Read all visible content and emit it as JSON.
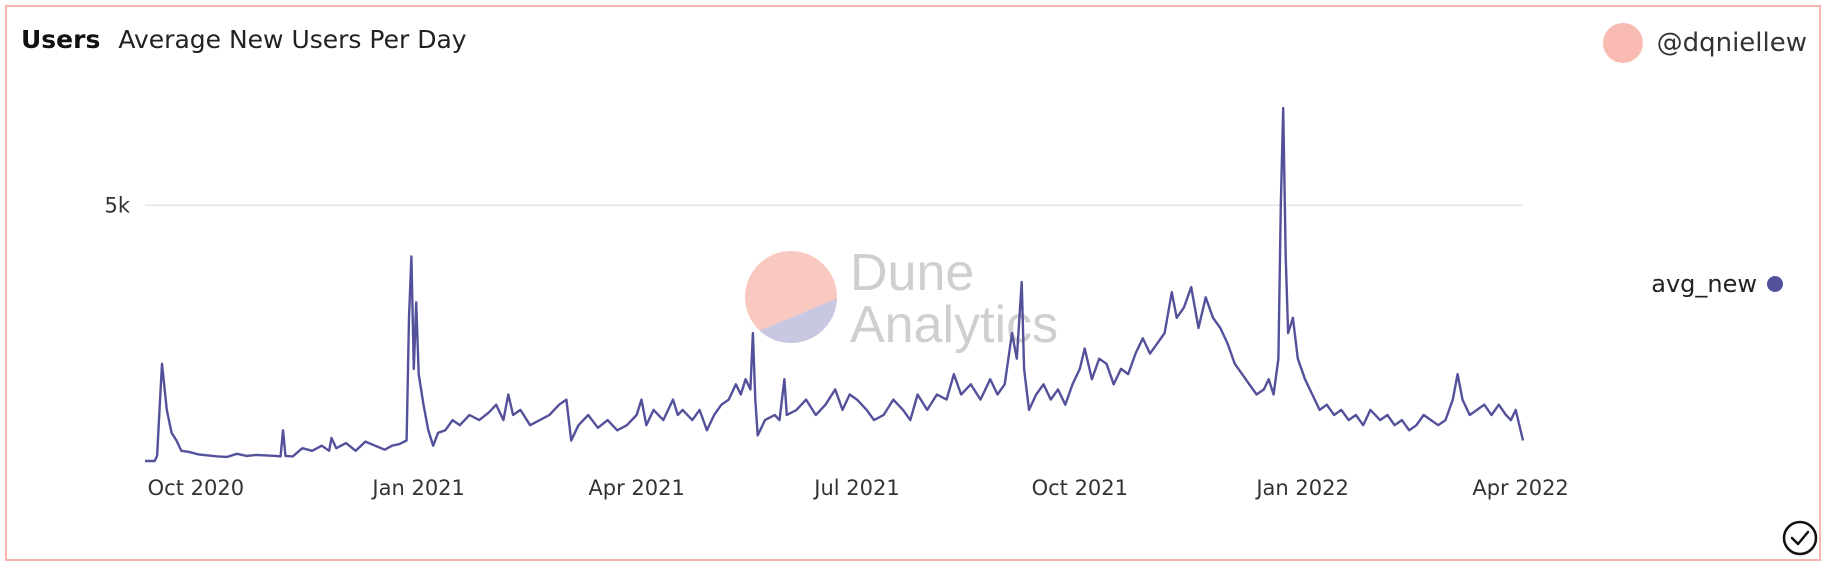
{
  "header": {
    "query_name": "Users",
    "viz_title": "Average New Users Per Day"
  },
  "author": {
    "username": "@dqniellew",
    "avatar_color": "#f9bab2"
  },
  "watermark": {
    "line1": "Dune",
    "line2": "Analytics",
    "color_top": "#f9c8c0",
    "color_bottom": "#c9c8e2",
    "text_color": "#cfcfcf"
  },
  "colors": {
    "series": "#54519b",
    "grid": "#e6e6e6",
    "border": "#f7b6ad"
  },
  "chart_data": {
    "type": "line",
    "title": "Average New Users Per Day",
    "xlabel": "",
    "ylabel": "",
    "x_range": [
      "2020-09-10",
      "2022-04-02"
    ],
    "ylim": [
      0,
      7000
    ],
    "y_ticks": [
      {
        "value": 5000,
        "label": "5k"
      }
    ],
    "x_ticks": [
      {
        "date": "2020-10-01",
        "label": "Oct 2020"
      },
      {
        "date": "2021-01-01",
        "label": "Jan 2021"
      },
      {
        "date": "2021-04-01",
        "label": "Apr 2021"
      },
      {
        "date": "2021-07-01",
        "label": "Jul 2021"
      },
      {
        "date": "2021-10-01",
        "label": "Oct 2021"
      },
      {
        "date": "2022-01-01",
        "label": "Jan 2022"
      },
      {
        "date": "2022-04-01",
        "label": "Apr 2022"
      }
    ],
    "grid": true,
    "legend_position": "right",
    "series": [
      {
        "name": "avg_new",
        "points": [
          [
            "2020-09-10",
            0
          ],
          [
            "2020-09-14",
            0
          ],
          [
            "2020-09-15",
            100
          ],
          [
            "2020-09-16",
            1000
          ],
          [
            "2020-09-17",
            1900
          ],
          [
            "2020-09-19",
            1000
          ],
          [
            "2020-09-21",
            550
          ],
          [
            "2020-09-23",
            400
          ],
          [
            "2020-09-25",
            200
          ],
          [
            "2020-09-28",
            180
          ],
          [
            "2020-10-02",
            130
          ],
          [
            "2020-10-06",
            110
          ],
          [
            "2020-10-10",
            90
          ],
          [
            "2020-10-14",
            80
          ],
          [
            "2020-10-18",
            140
          ],
          [
            "2020-10-22",
            100
          ],
          [
            "2020-10-26",
            120
          ],
          [
            "2020-10-30",
            110
          ],
          [
            "2020-11-03",
            100
          ],
          [
            "2020-11-05",
            90
          ],
          [
            "2020-11-06",
            600
          ],
          [
            "2020-11-07",
            100
          ],
          [
            "2020-11-10",
            90
          ],
          [
            "2020-11-14",
            250
          ],
          [
            "2020-11-18",
            200
          ],
          [
            "2020-11-22",
            300
          ],
          [
            "2020-11-25",
            200
          ],
          [
            "2020-11-26",
            450
          ],
          [
            "2020-11-28",
            250
          ],
          [
            "2020-12-02",
            350
          ],
          [
            "2020-12-06",
            200
          ],
          [
            "2020-12-10",
            380
          ],
          [
            "2020-12-14",
            300
          ],
          [
            "2020-12-18",
            220
          ],
          [
            "2020-12-21",
            300
          ],
          [
            "2020-12-24",
            330
          ],
          [
            "2020-12-27",
            400
          ],
          [
            "2020-12-28",
            2800
          ],
          [
            "2020-12-29",
            4000
          ],
          [
            "2020-12-30",
            1800
          ],
          [
            "2020-12-31",
            3100
          ],
          [
            "2021-01-01",
            1700
          ],
          [
            "2021-01-03",
            1100
          ],
          [
            "2021-01-05",
            600
          ],
          [
            "2021-01-07",
            300
          ],
          [
            "2021-01-09",
            550
          ],
          [
            "2021-01-12",
            600
          ],
          [
            "2021-01-15",
            800
          ],
          [
            "2021-01-18",
            700
          ],
          [
            "2021-01-22",
            900
          ],
          [
            "2021-01-26",
            800
          ],
          [
            "2021-01-30",
            950
          ],
          [
            "2021-02-02",
            1100
          ],
          [
            "2021-02-05",
            800
          ],
          [
            "2021-02-07",
            1300
          ],
          [
            "2021-02-09",
            900
          ],
          [
            "2021-02-12",
            1000
          ],
          [
            "2021-02-16",
            700
          ],
          [
            "2021-02-20",
            800
          ],
          [
            "2021-02-24",
            900
          ],
          [
            "2021-02-28",
            1100
          ],
          [
            "2021-03-03",
            1200
          ],
          [
            "2021-03-05",
            400
          ],
          [
            "2021-03-08",
            700
          ],
          [
            "2021-03-12",
            900
          ],
          [
            "2021-03-16",
            650
          ],
          [
            "2021-03-20",
            800
          ],
          [
            "2021-03-24",
            600
          ],
          [
            "2021-03-28",
            700
          ],
          [
            "2021-04-01",
            900
          ],
          [
            "2021-04-03",
            1200
          ],
          [
            "2021-04-05",
            700
          ],
          [
            "2021-04-08",
            1000
          ],
          [
            "2021-04-12",
            800
          ],
          [
            "2021-04-16",
            1200
          ],
          [
            "2021-04-18",
            900
          ],
          [
            "2021-04-20",
            1000
          ],
          [
            "2021-04-24",
            800
          ],
          [
            "2021-04-27",
            1000
          ],
          [
            "2021-04-30",
            600
          ],
          [
            "2021-05-03",
            900
          ],
          [
            "2021-05-06",
            1100
          ],
          [
            "2021-05-09",
            1200
          ],
          [
            "2021-05-12",
            1500
          ],
          [
            "2021-05-14",
            1300
          ],
          [
            "2021-05-16",
            1600
          ],
          [
            "2021-05-18",
            1400
          ],
          [
            "2021-05-19",
            2500
          ],
          [
            "2021-05-20",
            1200
          ],
          [
            "2021-05-21",
            500
          ],
          [
            "2021-05-24",
            800
          ],
          [
            "2021-05-28",
            900
          ],
          [
            "2021-05-30",
            800
          ],
          [
            "2021-06-01",
            1600
          ],
          [
            "2021-06-02",
            900
          ],
          [
            "2021-06-06",
            1000
          ],
          [
            "2021-06-10",
            1200
          ],
          [
            "2021-06-14",
            900
          ],
          [
            "2021-06-18",
            1100
          ],
          [
            "2021-06-22",
            1400
          ],
          [
            "2021-06-25",
            1000
          ],
          [
            "2021-06-28",
            1300
          ],
          [
            "2021-07-01",
            1200
          ],
          [
            "2021-07-05",
            1000
          ],
          [
            "2021-07-08",
            800
          ],
          [
            "2021-07-12",
            900
          ],
          [
            "2021-07-16",
            1200
          ],
          [
            "2021-07-20",
            1000
          ],
          [
            "2021-07-23",
            800
          ],
          [
            "2021-07-26",
            1300
          ],
          [
            "2021-07-30",
            1000
          ],
          [
            "2021-08-03",
            1300
          ],
          [
            "2021-08-07",
            1200
          ],
          [
            "2021-08-10",
            1700
          ],
          [
            "2021-08-13",
            1300
          ],
          [
            "2021-08-17",
            1500
          ],
          [
            "2021-08-21",
            1200
          ],
          [
            "2021-08-25",
            1600
          ],
          [
            "2021-08-28",
            1300
          ],
          [
            "2021-08-31",
            1500
          ],
          [
            "2021-09-03",
            2500
          ],
          [
            "2021-09-05",
            2000
          ],
          [
            "2021-09-07",
            3500
          ],
          [
            "2021-09-08",
            1800
          ],
          [
            "2021-09-10",
            1000
          ],
          [
            "2021-09-13",
            1300
          ],
          [
            "2021-09-16",
            1500
          ],
          [
            "2021-09-19",
            1200
          ],
          [
            "2021-09-22",
            1400
          ],
          [
            "2021-09-25",
            1100
          ],
          [
            "2021-09-28",
            1500
          ],
          [
            "2021-10-01",
            1800
          ],
          [
            "2021-10-03",
            2200
          ],
          [
            "2021-10-06",
            1600
          ],
          [
            "2021-10-09",
            2000
          ],
          [
            "2021-10-12",
            1900
          ],
          [
            "2021-10-15",
            1500
          ],
          [
            "2021-10-18",
            1800
          ],
          [
            "2021-10-21",
            1700
          ],
          [
            "2021-10-24",
            2100
          ],
          [
            "2021-10-27",
            2400
          ],
          [
            "2021-10-30",
            2100
          ],
          [
            "2021-11-02",
            2300
          ],
          [
            "2021-11-05",
            2500
          ],
          [
            "2021-11-08",
            3300
          ],
          [
            "2021-11-10",
            2800
          ],
          [
            "2021-11-13",
            3000
          ],
          [
            "2021-11-16",
            3400
          ],
          [
            "2021-11-19",
            2600
          ],
          [
            "2021-11-22",
            3200
          ],
          [
            "2021-11-25",
            2800
          ],
          [
            "2021-11-28",
            2600
          ],
          [
            "2021-12-01",
            2300
          ],
          [
            "2021-12-04",
            1900
          ],
          [
            "2021-12-07",
            1700
          ],
          [
            "2021-12-10",
            1500
          ],
          [
            "2021-12-13",
            1300
          ],
          [
            "2021-12-16",
            1400
          ],
          [
            "2021-12-18",
            1600
          ],
          [
            "2021-12-20",
            1300
          ],
          [
            "2021-12-22",
            2000
          ],
          [
            "2021-12-23",
            5000
          ],
          [
            "2021-12-24",
            6900
          ],
          [
            "2021-12-25",
            4000
          ],
          [
            "2021-12-26",
            2500
          ],
          [
            "2021-12-28",
            2800
          ],
          [
            "2021-12-30",
            2000
          ],
          [
            "2022-01-02",
            1600
          ],
          [
            "2022-01-05",
            1300
          ],
          [
            "2022-01-08",
            1000
          ],
          [
            "2022-01-11",
            1100
          ],
          [
            "2022-01-14",
            900
          ],
          [
            "2022-01-17",
            1000
          ],
          [
            "2022-01-20",
            800
          ],
          [
            "2022-01-23",
            900
          ],
          [
            "2022-01-26",
            700
          ],
          [
            "2022-01-29",
            1000
          ],
          [
            "2022-02-02",
            800
          ],
          [
            "2022-02-05",
            900
          ],
          [
            "2022-02-08",
            700
          ],
          [
            "2022-02-11",
            800
          ],
          [
            "2022-02-14",
            600
          ],
          [
            "2022-02-17",
            700
          ],
          [
            "2022-02-20",
            900
          ],
          [
            "2022-02-23",
            800
          ],
          [
            "2022-02-26",
            700
          ],
          [
            "2022-03-01",
            800
          ],
          [
            "2022-03-04",
            1200
          ],
          [
            "2022-03-06",
            1700
          ],
          [
            "2022-03-08",
            1200
          ],
          [
            "2022-03-11",
            900
          ],
          [
            "2022-03-14",
            1000
          ],
          [
            "2022-03-17",
            1100
          ],
          [
            "2022-03-20",
            900
          ],
          [
            "2022-03-23",
            1100
          ],
          [
            "2022-03-26",
            900
          ],
          [
            "2022-03-28",
            800
          ],
          [
            "2022-03-30",
            1000
          ],
          [
            "2022-04-02",
            400
          ]
        ]
      }
    ]
  }
}
